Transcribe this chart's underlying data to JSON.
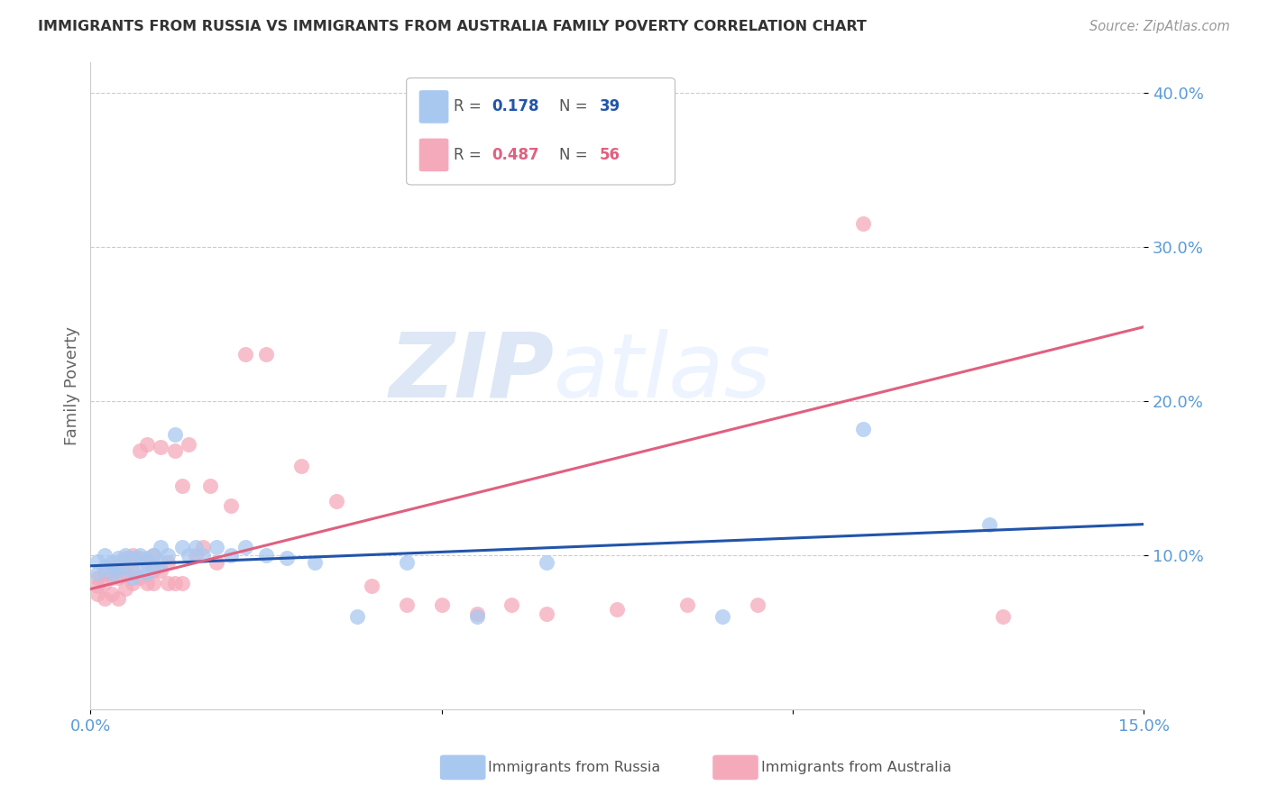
{
  "title": "IMMIGRANTS FROM RUSSIA VS IMMIGRANTS FROM AUSTRALIA FAMILY POVERTY CORRELATION CHART",
  "source": "Source: ZipAtlas.com",
  "xlabel_russia": "Immigrants from Russia",
  "xlabel_australia": "Immigrants from Australia",
  "ylabel": "Family Poverty",
  "xlim": [
    0,
    0.15
  ],
  "ylim": [
    0,
    0.42
  ],
  "xticks": [
    0.0,
    0.05,
    0.1,
    0.15
  ],
  "yticks": [
    0.1,
    0.2,
    0.3,
    0.4
  ],
  "ytick_labels": [
    "10.0%",
    "20.0%",
    "30.0%",
    "40.0%"
  ],
  "xtick_labels": [
    "0.0%",
    "",
    "",
    "15.0%"
  ],
  "russia_R": 0.178,
  "russia_N": 39,
  "australia_R": 0.487,
  "australia_N": 56,
  "color_russia": "#A8C8F0",
  "color_australia": "#F5AABB",
  "color_russia_line": "#2255AA",
  "color_australia_line": "#E06080",
  "color_axis_text": "#5B9BD5",
  "background_color": "#FFFFFF",
  "grid_color": "#CCCCCC",
  "russia_scatter_x": [
    0.001,
    0.001,
    0.002,
    0.002,
    0.003,
    0.003,
    0.004,
    0.004,
    0.005,
    0.005,
    0.006,
    0.006,
    0.007,
    0.007,
    0.008,
    0.008,
    0.009,
    0.009,
    0.01,
    0.01,
    0.011,
    0.012,
    0.013,
    0.014,
    0.015,
    0.016,
    0.018,
    0.02,
    0.022,
    0.025,
    0.028,
    0.032,
    0.038,
    0.045,
    0.055,
    0.065,
    0.09,
    0.11,
    0.128
  ],
  "russia_scatter_y": [
    0.096,
    0.088,
    0.1,
    0.092,
    0.095,
    0.088,
    0.098,
    0.09,
    0.1,
    0.092,
    0.098,
    0.085,
    0.1,
    0.092,
    0.098,
    0.088,
    0.1,
    0.092,
    0.105,
    0.095,
    0.1,
    0.178,
    0.105,
    0.1,
    0.105,
    0.1,
    0.105,
    0.1,
    0.105,
    0.1,
    0.098,
    0.095,
    0.06,
    0.095,
    0.06,
    0.095,
    0.06,
    0.182,
    0.12
  ],
  "australia_scatter_x": [
    0.001,
    0.001,
    0.001,
    0.002,
    0.002,
    0.002,
    0.003,
    0.003,
    0.003,
    0.004,
    0.004,
    0.004,
    0.005,
    0.005,
    0.005,
    0.006,
    0.006,
    0.006,
    0.007,
    0.007,
    0.007,
    0.008,
    0.008,
    0.008,
    0.009,
    0.009,
    0.009,
    0.01,
    0.01,
    0.011,
    0.011,
    0.012,
    0.012,
    0.013,
    0.013,
    0.014,
    0.015,
    0.016,
    0.017,
    0.018,
    0.02,
    0.022,
    0.025,
    0.03,
    0.035,
    0.04,
    0.045,
    0.05,
    0.055,
    0.06,
    0.065,
    0.075,
    0.085,
    0.095,
    0.11,
    0.13
  ],
  "australia_scatter_y": [
    0.085,
    0.08,
    0.075,
    0.088,
    0.082,
    0.072,
    0.092,
    0.085,
    0.075,
    0.095,
    0.085,
    0.072,
    0.098,
    0.088,
    0.078,
    0.1,
    0.09,
    0.082,
    0.168,
    0.098,
    0.085,
    0.172,
    0.095,
    0.082,
    0.1,
    0.09,
    0.082,
    0.17,
    0.09,
    0.095,
    0.082,
    0.168,
    0.082,
    0.145,
    0.082,
    0.172,
    0.1,
    0.105,
    0.145,
    0.095,
    0.132,
    0.23,
    0.23,
    0.158,
    0.135,
    0.08,
    0.068,
    0.068,
    0.062,
    0.068,
    0.062,
    0.065,
    0.068,
    0.068,
    0.315,
    0.06
  ],
  "watermark_zip": "ZIP",
  "watermark_atlas": "atlas",
  "russia_trend_x": [
    0.0,
    0.15
  ],
  "russia_trend_y": [
    0.093,
    0.12
  ],
  "australia_trend_x": [
    0.0,
    0.15
  ],
  "australia_trend_y": [
    0.078,
    0.248
  ]
}
